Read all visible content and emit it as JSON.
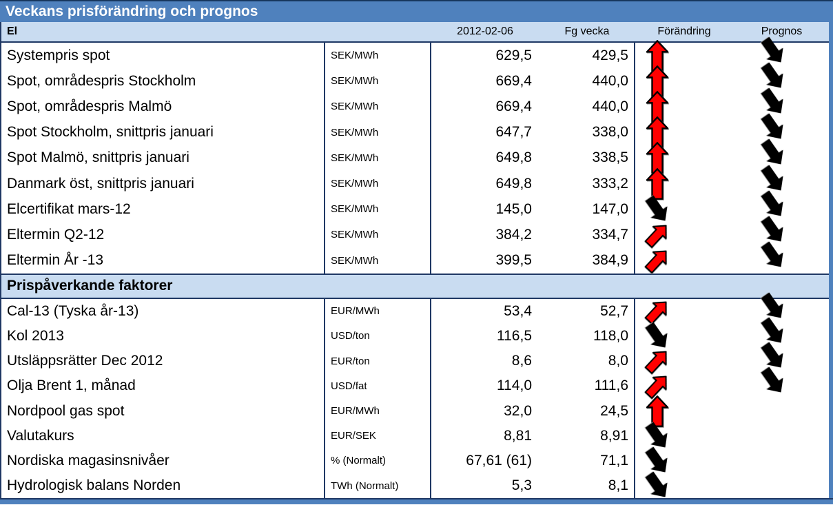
{
  "title": "Veckans prisförändring och prognos",
  "columns": {
    "date": "2012-02-06",
    "prev_week": "Fg vecka",
    "change": "Förändring",
    "forecast": "Prognos"
  },
  "colors": {
    "title_bar": "#4F81BD",
    "header_bg": "#C9DCF1",
    "grid_line": "#1F3864",
    "arrow_red": "#FF0000",
    "arrow_black": "#000000"
  },
  "icons": {
    "up": "up-arrow-icon",
    "up_diag": "up-right-arrow-icon",
    "down_diag": "down-right-arrow-icon"
  },
  "sections": [
    {
      "name": "El",
      "rows": [
        {
          "label": "Systempris spot",
          "unit": "SEK/MWh",
          "current": "629,5",
          "prev": "429,5",
          "change": "up",
          "forecast": "down_diag"
        },
        {
          "label": "Spot, områdespris Stockholm",
          "unit": "SEK/MWh",
          "current": "669,4",
          "prev": "440,0",
          "change": "up",
          "forecast": "down_diag"
        },
        {
          "label": "Spot, områdespris Malmö",
          "unit": "SEK/MWh",
          "current": "669,4",
          "prev": "440,0",
          "change": "up",
          "forecast": "down_diag"
        },
        {
          "label": "Spot Stockholm, snittpris januari",
          "unit": "SEK/MWh",
          "current": "647,7",
          "prev": "338,0",
          "change": "up",
          "forecast": "down_diag"
        },
        {
          "label": "Spot Malmö, snittpris januari",
          "unit": "SEK/MWh",
          "current": "649,8",
          "prev": "338,5",
          "change": "up",
          "forecast": "down_diag"
        },
        {
          "label": "Danmark öst, snittpris januari",
          "unit": "SEK/MWh",
          "current": "649,8",
          "prev": "333,2",
          "change": "up",
          "forecast": "down_diag"
        },
        {
          "label": "Elcertifikat mars-12",
          "unit": "SEK/MWh",
          "current": "145,0",
          "prev": "147,0",
          "change": "down_diag",
          "forecast": "down_diag"
        },
        {
          "label": "Eltermin Q2-12",
          "unit": "SEK/MWh",
          "current": "384,2",
          "prev": "334,7",
          "change": "up_diag",
          "forecast": "down_diag"
        },
        {
          "label": "Eltermin År -13",
          "unit": "SEK/MWh",
          "current": "399,5",
          "prev": "384,9",
          "change": "up_diag",
          "forecast": "down_diag"
        }
      ]
    },
    {
      "name": "Prispåverkande faktorer",
      "rows": [
        {
          "label": "Cal-13 (Tyska år-13)",
          "unit": "EUR/MWh",
          "current": "53,4",
          "prev": "52,7",
          "change": "up_diag",
          "forecast": "down_diag"
        },
        {
          "label": "Kol 2013",
          "unit": "USD/ton",
          "current": "116,5",
          "prev": "118,0",
          "change": "down_diag",
          "forecast": "down_diag"
        },
        {
          "label": "Utsläppsrätter Dec 2012",
          "unit": "EUR/ton",
          "current": "8,6",
          "prev": "8,0",
          "change": "up_diag",
          "forecast": "down_diag"
        },
        {
          "label": "Olja Brent 1, månad",
          "unit": "USD/fat",
          "current": "114,0",
          "prev": "111,6",
          "change": "up_diag",
          "forecast": "down_diag"
        },
        {
          "label": "Nordpool gas spot",
          "unit": "EUR/MWh",
          "current": "32,0",
          "prev": "24,5",
          "change": "up",
          "forecast": "none"
        },
        {
          "label": "Valutakurs",
          "unit": "EUR/SEK",
          "current": "8,81",
          "prev": "8,91",
          "change": "down_diag",
          "forecast": "none"
        },
        {
          "label": "Nordiska magasinsnivåer",
          "unit": "% (Normalt)",
          "current": "67,61 (61)",
          "prev": "71,1",
          "change": "down_diag",
          "forecast": "none"
        },
        {
          "label": "Hydrologisk balans Norden",
          "unit": "TWh (Normalt)",
          "current": "5,3",
          "prev": "8,1",
          "change": "down_diag",
          "forecast": "none"
        }
      ]
    }
  ]
}
